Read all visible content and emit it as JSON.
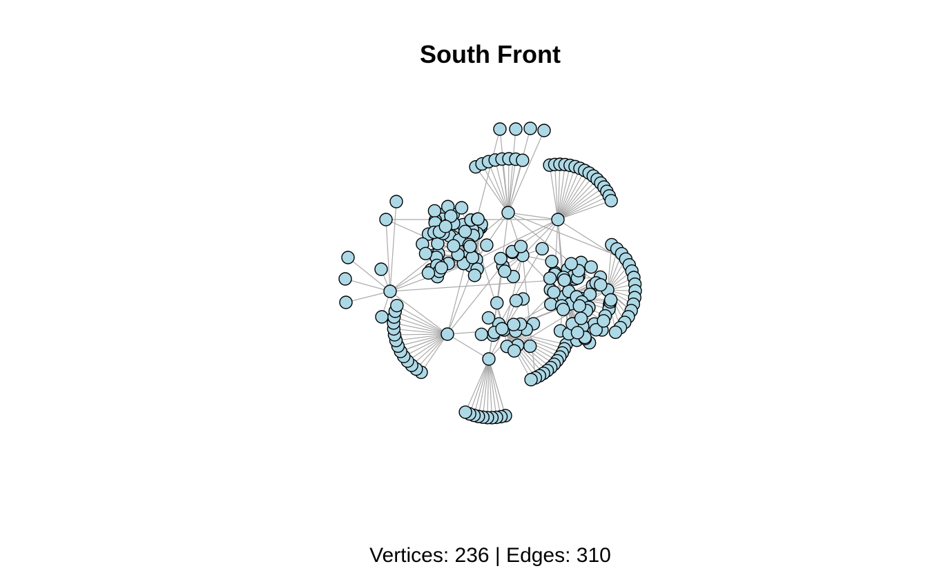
{
  "figure": {
    "title": "South Front",
    "caption": "Vertices: 236 | Edges: 310"
  },
  "graph": {
    "vertex_count": 236,
    "edge_count": 310,
    "vertex_color": "#add8e6",
    "vertex_border_color": "#000000",
    "edge_color": "#a9a9a9"
  }
}
